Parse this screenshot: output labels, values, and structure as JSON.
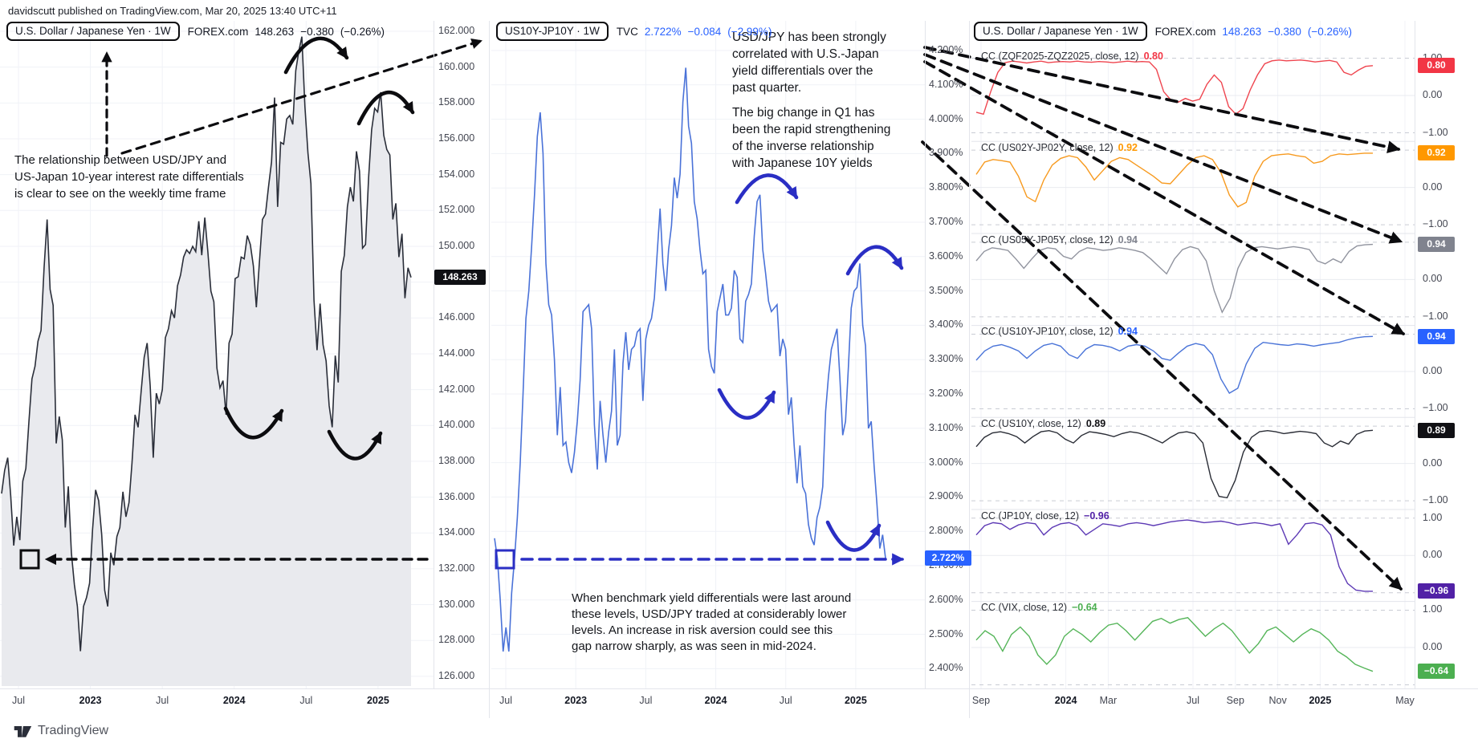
{
  "attribution": "davidscutt published on TradingView.com, Mar 20, 2025 13:40 UTC+11",
  "logo_text": "TradingView",
  "annotations": {
    "left_note": [
      "The relationship between USD/JPY and",
      "US-Japan 10-year interest rate differentials",
      "is clear to see on the weekly time frame"
    ],
    "corr_note": [
      "USD/JPY has been strongly",
      "correlated with U.S.-Japan",
      "yield differentials over the",
      "past quarter."
    ],
    "q1_note": [
      "The big change in Q1 has",
      "been the rapid strengthening",
      "of the inverse relationship",
      "with Japanese 10Y yields"
    ],
    "gap_note": [
      "When benchmark yield differentials were last around",
      "these levels, USD/JPY traded at  considerably lower",
      "levels. An increase in risk aversion could see this",
      "gap narrow sharply, as was seen in mid-2024."
    ]
  },
  "chart_data": [
    {
      "id": "usdjpy_weekly",
      "type": "area",
      "title": "U.S. Dollar / Japanese Yen · 1W",
      "exchange": "FOREX.com",
      "last": "148.263",
      "change": "−0.380",
      "change_pct": "(−0.26%)",
      "line_color": "#2a2e39",
      "fill_color": "#e9eaee",
      "badge": {
        "text": "148.263",
        "bg": "#0f1014"
      },
      "ylim": [
        125.4,
        162.6
      ],
      "y_ticks": [
        "162.000",
        "160.000",
        "158.000",
        "156.000",
        "154.000",
        "152.000",
        "150.000",
        "146.000",
        "144.000",
        "142.000",
        "140.000",
        "138.000",
        "136.000",
        "134.000",
        "132.000",
        "130.000",
        "128.000",
        "126.000"
      ],
      "x_ticks": [
        {
          "label": "Jul",
          "m": 0
        },
        {
          "label": "2023",
          "m": 6,
          "year": true
        },
        {
          "label": "Jul",
          "m": 12
        },
        {
          "label": "2024",
          "m": 18,
          "year": true
        },
        {
          "label": "Jul",
          "m": 24
        },
        {
          "label": "2025",
          "m": 30,
          "year": true
        }
      ],
      "values": [
        136.2,
        137.5,
        138.2,
        136.1,
        133.3,
        134.9,
        133.6,
        136.9,
        137.6,
        140.2,
        142.6,
        143.3,
        144.7,
        145.3,
        148.8,
        151.5,
        147.6,
        146.7,
        139.0,
        140.5,
        139.2,
        134.3,
        136.6,
        132.9,
        131.1,
        129.9,
        127.4,
        129.9,
        130.4,
        131.2,
        134.2,
        136.4,
        135.8,
        133.9,
        130.8,
        129.9,
        132.9,
        132.2,
        133.8,
        134.3,
        136.3,
        134.9,
        135.7,
        137.9,
        140.6,
        139.9,
        141.9,
        143.8,
        144.6,
        142.2,
        138.2,
        141.8,
        141.2,
        142.0,
        144.9,
        145.4,
        146.4,
        146.0,
        147.8,
        148.4,
        149.4,
        149.8,
        149.6,
        150.0,
        149.7,
        151.4,
        149.5,
        151.6,
        149.7,
        147.5,
        146.9,
        143.2,
        142.1,
        142.5,
        140.6,
        144.6,
        145.1,
        148.2,
        148.3,
        149.4,
        149.3,
        150.6,
        150.1,
        148.9,
        146.6,
        149.1,
        151.5,
        151.8,
        153.3,
        154.7,
        158.3,
        152.2,
        155.8,
        155.7,
        157.1,
        157.3,
        156.8,
        159.8,
        160.9,
        161.7,
        157.8,
        155.2,
        153.5,
        147.0,
        144.2,
        146.8,
        144.5,
        143.6,
        141.1,
        139.9,
        143.9,
        142.4,
        148.6,
        149.5,
        152.2,
        153.3,
        152.5,
        155.3,
        154.2,
        149.9,
        150.1,
        153.8,
        156.5,
        157.7,
        157.5,
        158.6,
        156.2,
        155.4,
        155.1,
        151.5,
        152.4,
        149.4,
        150.7,
        147.1,
        148.8,
        148.263
      ]
    },
    {
      "id": "us10y_jp10y_weekly",
      "type": "line",
      "title": "US10Y-JP10Y · 1W",
      "exchange": "TVC",
      "last": "2.722%",
      "change": "−0.084",
      "change_pct": "(−2.99%)",
      "line_color": "#4a72d8",
      "badge": {
        "text": "2.722%",
        "bg": "#2962ff"
      },
      "ylim": [
        2.35,
        4.25
      ],
      "y_ticks": [
        "4.200%",
        "4.100%",
        "4.000%",
        "3.900%",
        "3.800%",
        "3.700%",
        "3.600%",
        "3.500%",
        "3.400%",
        "3.300%",
        "3.200%",
        "3.100%",
        "3.000%",
        "2.900%",
        "2.800%",
        "2.700%",
        "2.600%",
        "2.500%",
        "2.400%"
      ],
      "x_ticks": [
        {
          "label": "Jul",
          "m": 0
        },
        {
          "label": "2023",
          "m": 6,
          "year": true
        },
        {
          "label": "Jul",
          "m": 12
        },
        {
          "label": "2024",
          "m": 18,
          "year": true
        },
        {
          "label": "Jul",
          "m": 24
        },
        {
          "label": "2025",
          "m": 30,
          "year": true
        }
      ],
      "values": [
        2.78,
        2.72,
        2.6,
        2.45,
        2.52,
        2.45,
        2.62,
        2.72,
        2.84,
        3.0,
        3.2,
        3.42,
        3.5,
        3.63,
        3.78,
        3.95,
        4.02,
        3.9,
        3.58,
        3.46,
        3.43,
        3.3,
        3.08,
        3.22,
        3.05,
        3.06,
        3.0,
        2.97,
        3.03,
        3.12,
        3.24,
        3.44,
        3.45,
        3.46,
        3.39,
        3.11,
        2.98,
        3.18,
        3.08,
        3.0,
        3.09,
        3.15,
        3.33,
        3.05,
        3.08,
        3.29,
        3.38,
        3.27,
        3.33,
        3.34,
        3.38,
        3.39,
        3.18,
        3.36,
        3.4,
        3.42,
        3.48,
        3.61,
        3.74,
        3.58,
        3.5,
        3.62,
        3.69,
        3.83,
        3.77,
        3.84,
        4.05,
        4.15,
        3.98,
        3.93,
        3.76,
        3.71,
        3.62,
        3.55,
        3.56,
        3.33,
        3.28,
        3.26,
        3.44,
        3.48,
        3.52,
        3.43,
        3.43,
        3.45,
        3.56,
        3.54,
        3.36,
        3.35,
        3.47,
        3.49,
        3.52,
        3.66,
        3.76,
        3.78,
        3.62,
        3.55,
        3.47,
        3.44,
        3.45,
        3.46,
        3.31,
        3.36,
        3.33,
        3.14,
        3.19,
        3.05,
        2.94,
        3.05,
        2.93,
        2.91,
        2.82,
        2.78,
        2.76,
        2.84,
        2.87,
        2.93,
        3.15,
        3.25,
        3.33,
        3.36,
        3.39,
        3.25,
        3.08,
        3.12,
        3.28,
        3.45,
        3.5,
        3.51,
        3.58,
        3.4,
        3.34,
        3.1,
        3.12,
        2.99,
        2.88,
        2.75,
        2.79,
        2.722
      ]
    },
    {
      "id": "usdjpy_rolling_correlations",
      "type": "line-panels",
      "title": "U.S. Dollar / Japanese Yen · 1W",
      "exchange": "FOREX.com",
      "last": "148.263",
      "change": "−0.380",
      "change_pct": "(−0.26%)",
      "x_ticks": [
        {
          "label": "Sep",
          "m": 0
        },
        {
          "label": "2024",
          "m": 4,
          "year": true
        },
        {
          "label": "Mar",
          "m": 6
        },
        {
          "label": "Jul",
          "m": 10
        },
        {
          "label": "Sep",
          "m": 12
        },
        {
          "label": "Nov",
          "m": 14
        },
        {
          "label": "2025",
          "m": 16,
          "year": true
        },
        {
          "label": "May",
          "m": 20
        }
      ],
      "panels": [
        {
          "label": "CC (ZQF2025-ZQZ2025, close, 12)",
          "value": "0.80",
          "line_color": "#ef454f",
          "badge_bg": "#f23645",
          "scale_labels": [
            {
              "t": "1.00",
              "v": 1
            },
            {
              "t": "0.00",
              "v": 0
            },
            {
              "t": "−1.00",
              "v": -1
            }
          ],
          "values": [
            -0.45,
            -0.5,
            0.1,
            0.62,
            0.88,
            0.92,
            0.9,
            0.87,
            0.9,
            0.92,
            0.88,
            0.9,
            0.91,
            0.9,
            0.92,
            0.9,
            0.89,
            0.91,
            0.9,
            0.88,
            0.9,
            0.92,
            0.9,
            0.91,
            0.9,
            0.7,
            0.1,
            -0.12,
            -0.18,
            -0.08,
            -0.15,
            -0.1,
            0.3,
            0.55,
            0.35,
            -0.3,
            -0.5,
            -0.35,
            0.15,
            0.55,
            0.85,
            0.93,
            0.95,
            0.93,
            0.94,
            0.95,
            0.93,
            0.9,
            0.92,
            0.94,
            0.9,
            0.62,
            0.55,
            0.68,
            0.78,
            0.8
          ]
        },
        {
          "label": "CC (US02Y-JP02Y, close, 12)",
          "value": "0.92",
          "line_color": "#f79a1f",
          "badge_bg": "#ff9800",
          "scale_labels": [
            {
              "t": "0.00",
              "v": 0
            },
            {
              "t": "−1.00",
              "v": -1
            }
          ],
          "values": [
            0.35,
            0.68,
            0.75,
            0.72,
            0.68,
            0.3,
            -0.25,
            -0.38,
            0.2,
            0.6,
            0.78,
            0.85,
            0.8,
            0.55,
            0.2,
            0.45,
            0.7,
            0.8,
            0.75,
            0.6,
            0.45,
            0.3,
            0.12,
            0.1,
            0.35,
            0.6,
            0.8,
            0.85,
            0.75,
            0.4,
            -0.2,
            -0.52,
            -0.4,
            0.3,
            0.7,
            0.85,
            0.88,
            0.9,
            0.85,
            0.82,
            0.65,
            0.7,
            0.85,
            0.9,
            0.88,
            0.9,
            0.92,
            0.92
          ]
        },
        {
          "label": "CC (US05Y-JP05Y, close, 12)",
          "value": "0.94",
          "line_color": "#90939e",
          "badge_bg": "#80838e",
          "scale_labels": [
            {
              "t": "0.00",
              "v": 0
            },
            {
              "t": "−1.00",
              "v": -1
            }
          ],
          "values": [
            0.5,
            0.75,
            0.85,
            0.82,
            0.78,
            0.55,
            0.3,
            0.55,
            0.78,
            0.85,
            0.82,
            0.62,
            0.55,
            0.75,
            0.85,
            0.82,
            0.78,
            0.8,
            0.85,
            0.82,
            0.78,
            0.72,
            0.55,
            0.35,
            0.15,
            0.55,
            0.8,
            0.88,
            0.82,
            0.5,
            -0.3,
            -0.88,
            -0.5,
            0.3,
            0.72,
            0.85,
            0.88,
            0.85,
            0.82,
            0.85,
            0.88,
            0.85,
            0.8,
            0.5,
            0.42,
            0.55,
            0.45,
            0.75,
            0.9,
            0.93,
            0.94
          ]
        },
        {
          "label": "CC (US10Y-JP10Y, close, 12)",
          "value": "0.94",
          "line_color": "#4a74d8",
          "badge_bg": "#2962ff",
          "scale_labels": [
            {
              "t": "0.00",
              "v": 0
            },
            {
              "t": "−1.00",
              "v": -1
            }
          ],
          "values": [
            0.3,
            0.55,
            0.68,
            0.72,
            0.65,
            0.55,
            0.35,
            0.55,
            0.7,
            0.75,
            0.68,
            0.45,
            0.35,
            0.6,
            0.72,
            0.7,
            0.65,
            0.55,
            0.68,
            0.72,
            0.68,
            0.55,
            0.35,
            0.3,
            0.5,
            0.68,
            0.75,
            0.7,
            0.45,
            -0.2,
            -0.58,
            -0.45,
            0.2,
            0.62,
            0.78,
            0.75,
            0.72,
            0.7,
            0.74,
            0.72,
            0.68,
            0.72,
            0.75,
            0.78,
            0.85,
            0.9,
            0.93,
            0.94
          ]
        },
        {
          "label": "CC (US10Y, close, 12)",
          "value": "0.89",
          "line_color": "#2a2d36",
          "badge_bg": "#101014",
          "scale_labels": [
            {
              "t": "0.00",
              "v": 0
            },
            {
              "t": "−1.00",
              "v": -1
            }
          ],
          "values": [
            0.45,
            0.7,
            0.82,
            0.85,
            0.8,
            0.72,
            0.55,
            0.72,
            0.85,
            0.88,
            0.82,
            0.65,
            0.55,
            0.75,
            0.85,
            0.82,
            0.78,
            0.72,
            0.8,
            0.85,
            0.82,
            0.75,
            0.65,
            0.55,
            0.7,
            0.82,
            0.85,
            0.8,
            0.55,
            -0.4,
            -0.88,
            -0.92,
            -0.45,
            0.3,
            0.7,
            0.85,
            0.88,
            0.85,
            0.8,
            0.83,
            0.86,
            0.84,
            0.8,
            0.55,
            0.45,
            0.6,
            0.52,
            0.78,
            0.87,
            0.89
          ]
        },
        {
          "label": "CC (JP10Y, close, 12)",
          "value": "−0.96",
          "line_color": "#5d3ab5",
          "badge_bg": "#5121a6",
          "scale_labels": [
            {
              "t": "1.00",
              "v": 1
            },
            {
              "t": "0.00",
              "v": 0
            }
          ],
          "values": [
            0.55,
            0.8,
            0.88,
            0.85,
            0.7,
            0.82,
            0.88,
            0.85,
            0.55,
            0.75,
            0.85,
            0.88,
            0.8,
            0.55,
            0.7,
            0.85,
            0.82,
            0.78,
            0.85,
            0.88,
            0.85,
            0.8,
            0.85,
            0.9,
            0.93,
            0.95,
            0.92,
            0.88,
            0.9,
            0.92,
            0.88,
            0.82,
            0.85,
            0.88,
            0.85,
            0.8,
            0.85,
            0.3,
            0.55,
            0.85,
            0.88,
            0.82,
            0.55,
            -0.3,
            -0.75,
            -0.93,
            -0.96,
            -0.96
          ]
        },
        {
          "label": "CC (VIX, close, 12)",
          "value": "−0.64",
          "line_color": "#55b559",
          "badge_bg": "#4caf50",
          "scale_labels": [
            {
              "t": "1.00",
              "v": 1
            },
            {
              "t": "0.00",
              "v": 0
            }
          ],
          "values": [
            0.2,
            0.45,
            0.3,
            -0.1,
            0.35,
            0.55,
            0.3,
            -0.2,
            -0.45,
            -0.2,
            0.3,
            0.5,
            0.35,
            0.15,
            0.4,
            0.6,
            0.65,
            0.45,
            0.2,
            0.45,
            0.7,
            0.78,
            0.65,
            0.75,
            0.8,
            0.55,
            0.3,
            0.5,
            0.65,
            0.45,
            0.15,
            -0.15,
            0.1,
            0.45,
            0.55,
            0.35,
            0.15,
            0.35,
            0.5,
            0.4,
            0.2,
            -0.1,
            -0.25,
            -0.45,
            -0.55,
            -0.64
          ]
        }
      ]
    }
  ]
}
